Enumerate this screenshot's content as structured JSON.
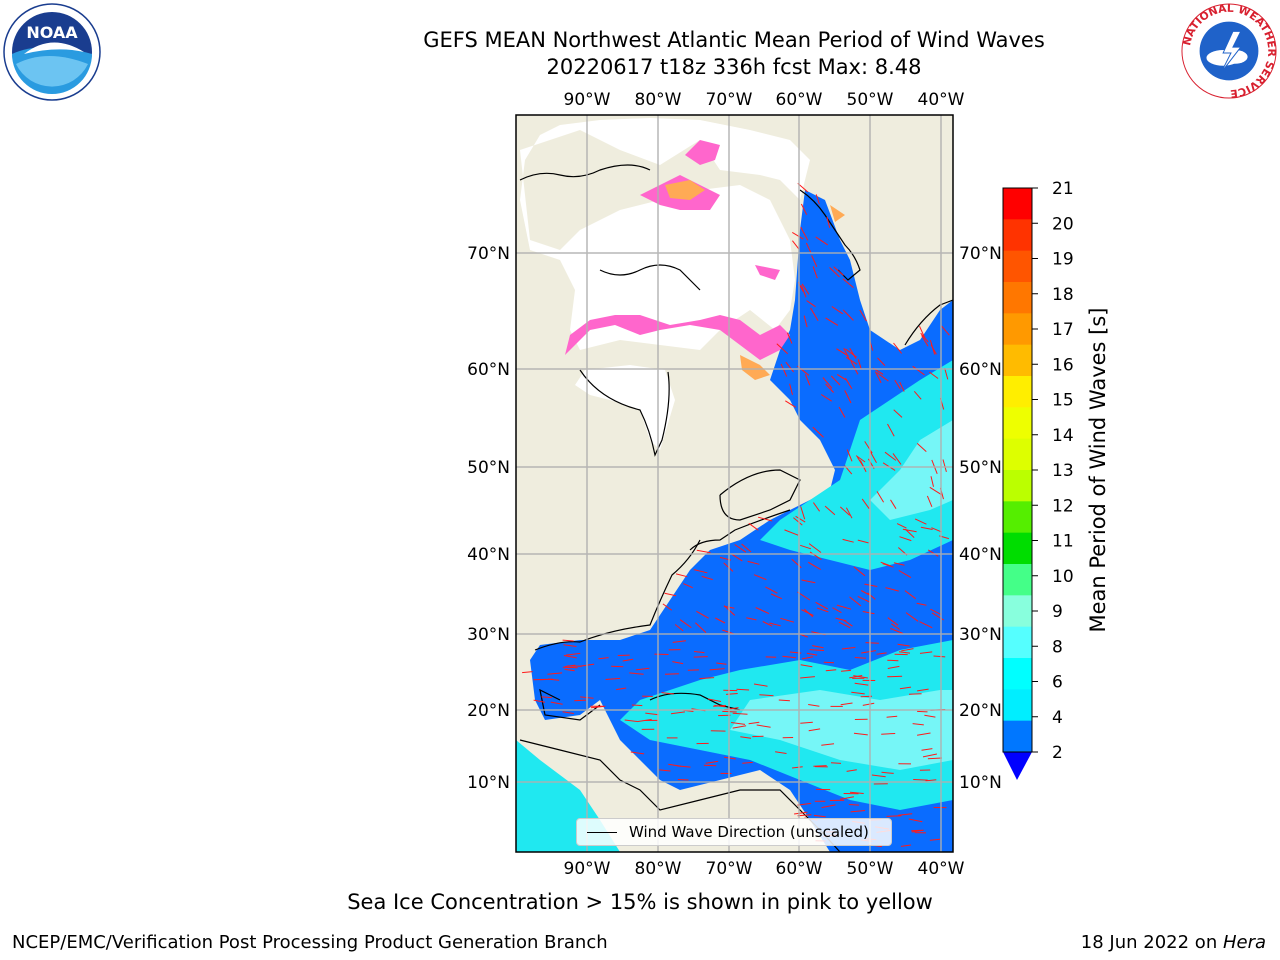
{
  "header": {
    "title_line1": "GEFS MEAN Northwest Atlantic Mean Period of Wind Waves",
    "title_line2": "20220617 t18z 336h fcst   Max: 8.48"
  },
  "logos": {
    "left": {
      "text": "NOAA",
      "icon": "noaa-logo-icon"
    },
    "right": {
      "ring_text": "NATIONAL WEATHER SERVICE",
      "icon": "nws-logo-icon"
    }
  },
  "map": {
    "longitude_labels": [
      "90°W",
      "80°W",
      "70°W",
      "60°W",
      "50°W",
      "40°W"
    ],
    "latitude_labels": [
      "70°N",
      "60°N",
      "50°N",
      "40°N",
      "30°N",
      "20°N",
      "10°N"
    ],
    "colors": {
      "land": "#efedde",
      "ice_region": "#ffffff",
      "ocean_blue": "#0a6cff",
      "ocean_cyan": "#20e8f0",
      "ocean_light": "#7ff7f7",
      "ice_pink": "#ff66cc",
      "ice_orange": "#ffaa55",
      "arrow": "#ff1a1a",
      "grid": "#b0b0b0"
    }
  },
  "legend": {
    "label": "Wind Wave Direction (unscaled)"
  },
  "colorbar": {
    "label": "Mean Period of Wind Waves [s]",
    "ticks": [
      "21",
      "20",
      "19",
      "18",
      "17",
      "16",
      "15",
      "14",
      "13",
      "12",
      "11",
      "10",
      "9",
      "8",
      "6",
      "4",
      "2"
    ],
    "colors": [
      "#ff0000",
      "#ff3300",
      "#ff5500",
      "#ff7700",
      "#ff9900",
      "#ffbb00",
      "#ffee00",
      "#eeff00",
      "#ddff00",
      "#bbff00",
      "#55ee00",
      "#00dd00",
      "#44ff88",
      "#88ffdd",
      "#55ffff",
      "#00ffff",
      "#00eeff",
      "#0077ff"
    ],
    "extend_color": "#0000ff"
  },
  "footer": {
    "ice_note": "Sea Ice Concentration > 15% is shown in pink to yellow",
    "left": "NCEP/EMC/Verification Post Processing Product Generation Branch",
    "date": "18 Jun 2022 on ",
    "host": "Hera"
  }
}
